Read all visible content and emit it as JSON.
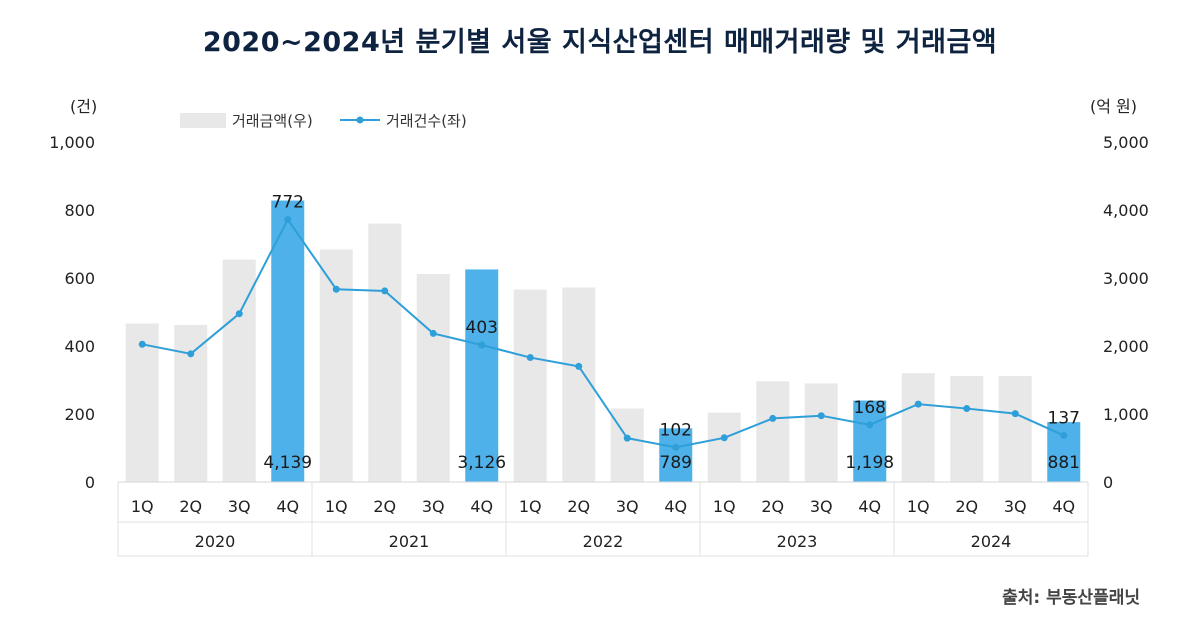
{
  "title": "2020~2024년 분기별 서울 지식산업센터 매매거래량 및 거래금액",
  "source": "출처: 부동산플래닛",
  "chart_data": {
    "type": "bar+line",
    "left_axis_unit": "(건)",
    "right_axis_unit": "(억 원)",
    "left_ticks": [
      "0",
      "200",
      "400",
      "600",
      "800",
      "1,000"
    ],
    "right_ticks": [
      "0",
      "1,000",
      "2,000",
      "3,000",
      "4,000",
      "5,000"
    ],
    "ylim_left": [
      0,
      1000
    ],
    "ylim_right": [
      0,
      5000
    ],
    "years": [
      "2020",
      "2021",
      "2022",
      "2023",
      "2024"
    ],
    "quarters": [
      "1Q",
      "2Q",
      "3Q",
      "4Q"
    ],
    "series": [
      {
        "name": "거래금액(우)",
        "kind": "bar",
        "axis": "right",
        "color": "#e8e8e8",
        "highlight_color": "#4eb1ea",
        "values": [
          2330,
          2310,
          3270,
          4139,
          3420,
          3800,
          3060,
          3126,
          2830,
          2860,
          1080,
          789,
          1020,
          1480,
          1450,
          1198,
          1600,
          1560,
          1560,
          881
        ],
        "highlight_indices": [
          3,
          7,
          11,
          15,
          19
        ],
        "labels": [
          "",
          "",
          "",
          "4,139",
          "",
          "",
          "",
          "3,126",
          "",
          "",
          "",
          "789",
          "",
          "",
          "",
          "1,198",
          "",
          "",
          "",
          "881"
        ]
      },
      {
        "name": "거래건수(좌)",
        "kind": "line",
        "axis": "left",
        "color": "#2e9fd8",
        "values": [
          405,
          377,
          495,
          772,
          567,
          562,
          437,
          403,
          366,
          340,
          129,
          102,
          130,
          187,
          195,
          168,
          229,
          216,
          201,
          137
        ],
        "labels": [
          "",
          "",
          "",
          "772",
          "",
          "",
          "",
          "403",
          "",
          "",
          "",
          "102",
          "",
          "",
          "",
          "168",
          "",
          "",
          "",
          "137"
        ]
      }
    ]
  }
}
